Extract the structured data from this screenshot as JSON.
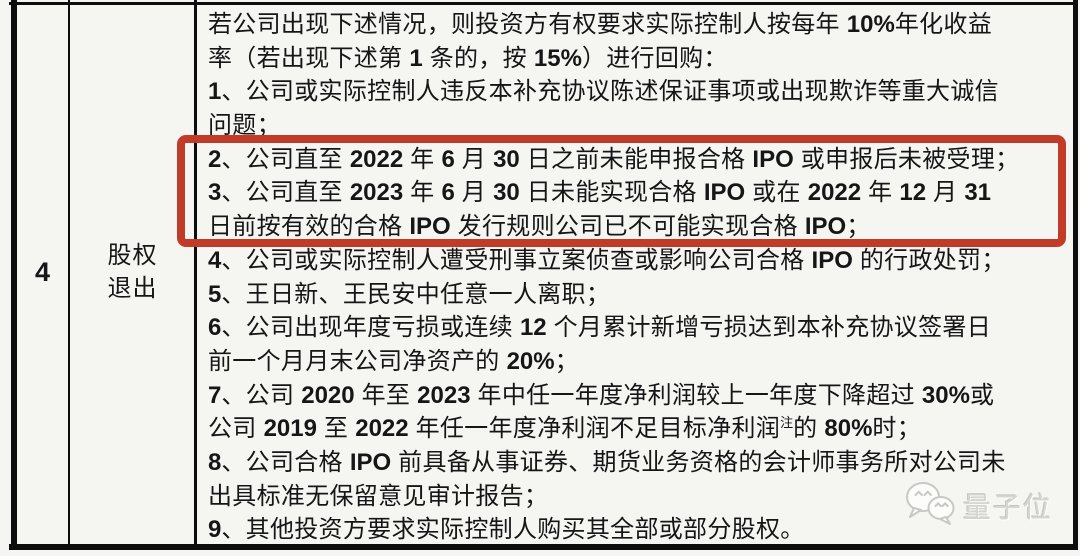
{
  "page": {
    "background": "#f5f5f2"
  },
  "table": {
    "row_number": "4",
    "row_label_lines": [
      "股权",
      "退出"
    ],
    "clause_lines": [
      {
        "parts": [
          {
            "text": "若公司出现下述情况，则投资方有权要求实际控制人按每年 10%年化收益"
          }
        ]
      },
      {
        "parts": [
          {
            "text": "率（若出现下述第 1 条的，按 15%）进行回购："
          }
        ]
      },
      {
        "parts": [
          {
            "text": "1、公司或实际控制人违反本补充协议陈述保证事项或出现欺诈等重大诚信"
          }
        ]
      },
      {
        "parts": [
          {
            "text": "问题；"
          }
        ]
      },
      {
        "parts": [
          {
            "text": "2、公司直至 2022 年 6 月 30 日之前未能申报合格 IPO 或申报后未被受理；"
          }
        ]
      },
      {
        "parts": [
          {
            "text": "3、公司直至 2023 年 6 月 30 日未能实现合格 IPO 或在 2022 年 12 月 31"
          }
        ]
      },
      {
        "parts": [
          {
            "text": "日前按有效的合格 IPO 发行规则公司已不可能实现合格 IPO；"
          }
        ]
      },
      {
        "parts": [
          {
            "text": "4、公司或实际控制人遭受刑事立案侦查或影响公司合格 IPO 的行政处罚；"
          }
        ]
      },
      {
        "parts": [
          {
            "text": "5、王日新、王民安中任意一人离职；"
          }
        ]
      },
      {
        "parts": [
          {
            "text": "6、公司出现年度亏损或连续 12 个月累计新增亏损达到本补充协议签署日"
          }
        ]
      },
      {
        "parts": [
          {
            "text": "前一个月月末公司净资产的 20%；"
          }
        ]
      },
      {
        "parts": [
          {
            "text": "7、公司 2020 年至 2023 年中任一年度净利润较上一年度下降超过 30%或"
          }
        ]
      },
      {
        "parts": [
          {
            "text": "公司 2019 至 2022 年任一年度净利润不足目标净利润"
          },
          {
            "text": "注",
            "sup": true
          },
          {
            "text": "的 80%时；"
          }
        ]
      },
      {
        "parts": [
          {
            "text": "8、公司合格 IPO 前具备从事证券、期货业务资格的会计师事务所对公司未"
          }
        ]
      },
      {
        "parts": [
          {
            "text": "出具标准无保留意见审计报告；"
          }
        ]
      },
      {
        "parts": [
          {
            "text": "9、其他投资方要求实际控制人购买其全部或部分股权。"
          }
        ]
      }
    ]
  },
  "highlight": {
    "border_color": "#c23b28"
  },
  "watermark": {
    "label": "量子位",
    "icon": "wechat-chat-bubbles-icon"
  }
}
